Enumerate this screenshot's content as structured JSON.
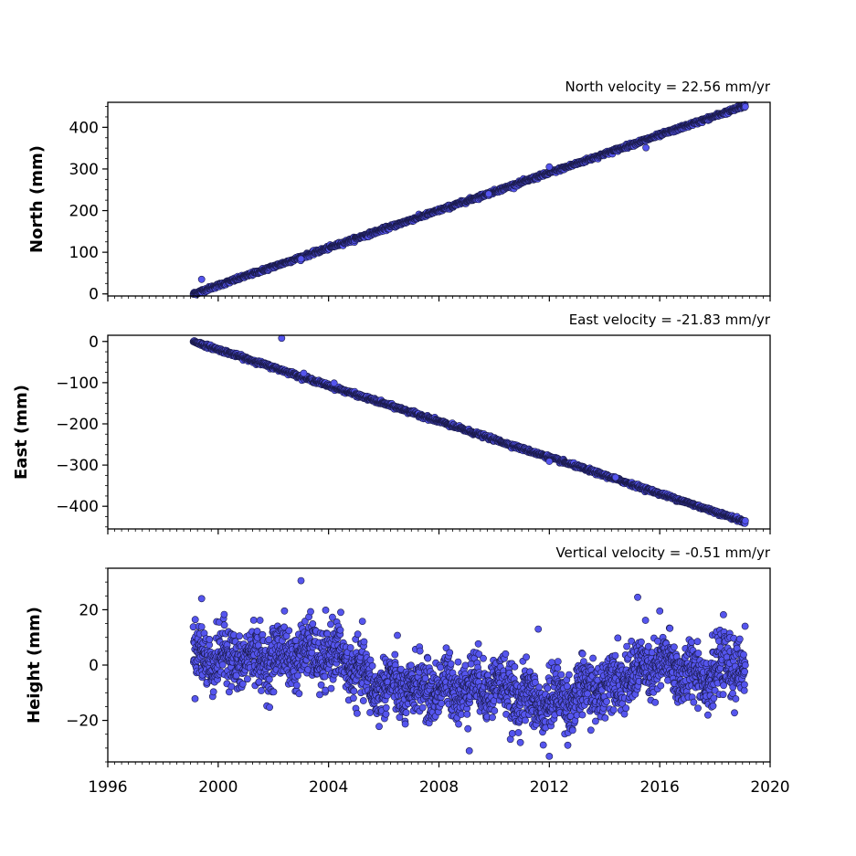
{
  "chart_data": {
    "type": "scatter",
    "x_axis": {
      "label": "",
      "range": [
        1996,
        2020
      ],
      "ticks": [
        1996,
        2000,
        2004,
        2008,
        2012,
        2016,
        2020
      ],
      "tick_labels": [
        "1996",
        "2000",
        "2004",
        "2008",
        "2012",
        "2016",
        "2020"
      ]
    },
    "marker_color": "#5555ee",
    "marker_edge_color": "#1a1a4a",
    "data_span": {
      "start": 1999.1,
      "end": 2019.1
    },
    "panels": [
      {
        "title": "North velocity = 22.56 mm/yr",
        "ylabel": "North (mm)",
        "ylim": [
          -5,
          460
        ],
        "yticks": [
          0,
          100,
          200,
          300,
          400
        ],
        "ytick_labels": [
          "0",
          "100",
          "200",
          "300",
          "400"
        ],
        "series": {
          "trend_mm_per_yr": 22.56,
          "x": [
            1999.1,
            2001,
            2003,
            2005,
            2007,
            2009,
            2011,
            2013,
            2015,
            2017,
            2019.1
          ],
          "y": [
            0,
            43,
            88,
            133,
            178,
            223,
            268,
            313,
            359,
            404,
            452
          ]
        },
        "outliers": [
          {
            "x": 1999.4,
            "y": 35
          },
          {
            "x": 2003.0,
            "y": 84
          },
          {
            "x": 2009.8,
            "y": 240
          },
          {
            "x": 2012.0,
            "y": 305
          },
          {
            "x": 2015.5,
            "y": 351
          }
        ]
      },
      {
        "title": "East velocity = -21.83 mm/yr",
        "ylabel": "East (mm)",
        "ylim": [
          -455,
          15
        ],
        "yticks": [
          0,
          -100,
          -200,
          -300,
          -400
        ],
        "ytick_labels": [
          "0",
          "−100",
          "−200",
          "−300",
          "−400"
        ],
        "series": {
          "trend_mm_per_yr": -21.83,
          "x": [
            1999.1,
            2001,
            2003,
            2005,
            2007,
            2009,
            2011,
            2013,
            2015,
            2017,
            2019.1
          ],
          "y": [
            0,
            -41,
            -85,
            -129,
            -172,
            -216,
            -260,
            -303,
            -347,
            -391,
            -438
          ]
        },
        "outliers": [
          {
            "x": 2002.3,
            "y": 8
          },
          {
            "x": 2003.1,
            "y": -77
          },
          {
            "x": 2004.2,
            "y": -101
          },
          {
            "x": 2012.0,
            "y": -291
          },
          {
            "x": 2014.4,
            "y": -330
          }
        ]
      },
      {
        "title": "Vertical velocity = -0.51 mm/yr",
        "ylabel": "Height (mm)",
        "ylim": [
          -35,
          35
        ],
        "yticks": [
          20,
          0,
          -20
        ],
        "ytick_labels": [
          "20",
          "0",
          "−20"
        ],
        "series": {
          "trend_mm_per_yr": -0.51,
          "x": [
            1999.5,
            2001,
            2003,
            2004.5,
            2005.5,
            2007,
            2008.5,
            2010,
            2011.5,
            2013,
            2014.5,
            2016,
            2017.5,
            2019
          ],
          "y": [
            3,
            2,
            4,
            3,
            -7,
            -9,
            -8,
            -7,
            -14,
            -11,
            -5,
            0,
            -4,
            1
          ]
        },
        "outliers": [
          {
            "x": 2003.0,
            "y": 30.5
          },
          {
            "x": 1999.4,
            "y": 24
          },
          {
            "x": 2015.2,
            "y": 24.5
          },
          {
            "x": 2009.1,
            "y": -31
          },
          {
            "x": 2012.0,
            "y": -33
          },
          {
            "x": 2011.6,
            "y": 13
          },
          {
            "x": 2016.0,
            "y": 19.5
          }
        ]
      }
    ],
    "grid": false,
    "legend": "none"
  }
}
